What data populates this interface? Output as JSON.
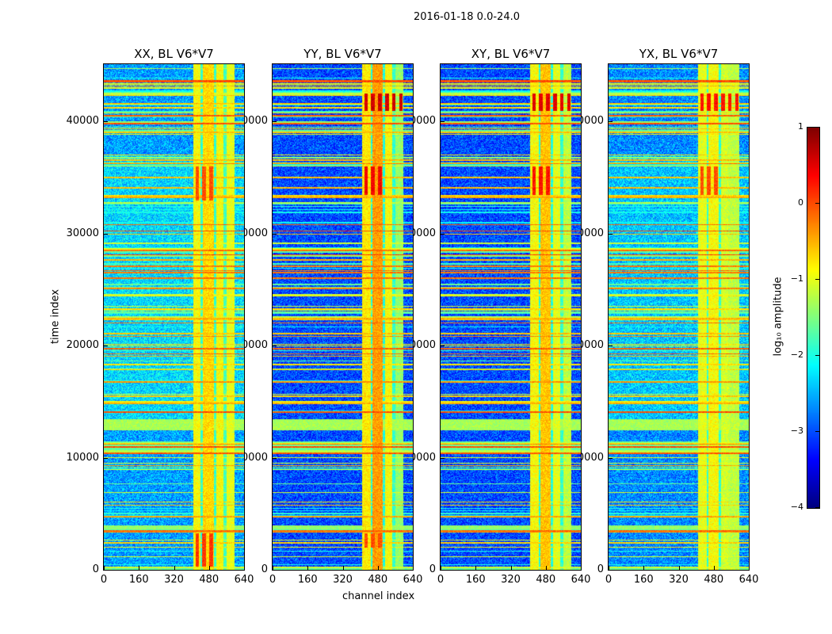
{
  "figure_title": "2016-01-18 0.0-24.0",
  "chart_data": {
    "type": "heatmap",
    "suptitle": "2016-01-18 0.0-24.0",
    "xlabel": "channel index",
    "ylabel": "time index",
    "xlim": [
      0,
      640
    ],
    "ylim": [
      0,
      45100
    ],
    "xticks": [
      "0",
      "160",
      "320",
      "480",
      "640"
    ],
    "yticks": [
      "0",
      "10000",
      "20000",
      "30000",
      "40000"
    ],
    "clim": [
      -4,
      1
    ],
    "colormap": "jet",
    "panels": [
      {
        "title": "XX, BL V6*V7",
        "background_level": -2.6,
        "channel_bands": [
          {
            "start": 405,
            "end": 440,
            "level": -0.9
          },
          {
            "start": 440,
            "end": 450,
            "level": -1.9
          },
          {
            "start": 450,
            "end": 500,
            "level": -0.7
          },
          {
            "start": 500,
            "end": 510,
            "level": -1.9
          },
          {
            "start": 510,
            "end": 545,
            "level": -0.9
          },
          {
            "start": 545,
            "end": 560,
            "level": -1.8
          },
          {
            "start": 560,
            "end": 595,
            "level": -1.0
          }
        ],
        "hot_patches": [
          {
            "c0": 405,
            "c1": 500,
            "t0": 300,
            "t1": 3300,
            "level": 0.1
          },
          {
            "c0": 405,
            "c1": 500,
            "t0": 33000,
            "t1": 36000,
            "level": 0.0
          }
        ]
      },
      {
        "title": "YY, BL V6*V7",
        "background_level": -3.0,
        "channel_bands": [
          {
            "start": 405,
            "end": 445,
            "level": -0.8
          },
          {
            "start": 445,
            "end": 455,
            "level": -2.0
          },
          {
            "start": 455,
            "end": 500,
            "level": -0.4
          },
          {
            "start": 500,
            "end": 510,
            "level": -2.0
          },
          {
            "start": 510,
            "end": 545,
            "level": -0.9
          },
          {
            "start": 545,
            "end": 560,
            "level": -1.9
          },
          {
            "start": 560,
            "end": 595,
            "level": -1.4
          }
        ],
        "hot_patches": [
          {
            "c0": 405,
            "c1": 600,
            "t0": 41000,
            "t1": 42500,
            "level": 0.6
          },
          {
            "c0": 405,
            "c1": 500,
            "t0": 33500,
            "t1": 36000,
            "level": 0.4
          },
          {
            "c0": 405,
            "c1": 500,
            "t0": 2000,
            "t1": 3300,
            "level": 0.0
          }
        ]
      },
      {
        "title": "XY, BL V6*V7",
        "background_level": -3.0,
        "channel_bands": [
          {
            "start": 405,
            "end": 445,
            "level": -0.9
          },
          {
            "start": 445,
            "end": 455,
            "level": -2.0
          },
          {
            "start": 455,
            "end": 500,
            "level": -0.6
          },
          {
            "start": 500,
            "end": 510,
            "level": -2.0
          },
          {
            "start": 510,
            "end": 545,
            "level": -1.0
          },
          {
            "start": 545,
            "end": 560,
            "level": -1.9
          },
          {
            "start": 560,
            "end": 595,
            "level": -1.2
          }
        ],
        "hot_patches": [
          {
            "c0": 405,
            "c1": 600,
            "t0": 41000,
            "t1": 42500,
            "level": 0.5
          },
          {
            "c0": 405,
            "c1": 500,
            "t0": 33500,
            "t1": 36000,
            "level": 0.3
          }
        ]
      },
      {
        "title": "YX, BL V6*V7",
        "background_level": -2.7,
        "channel_bands": [
          {
            "start": 405,
            "end": 445,
            "level": -1.0
          },
          {
            "start": 445,
            "end": 455,
            "level": -1.9
          },
          {
            "start": 455,
            "end": 500,
            "level": -0.9
          },
          {
            "start": 500,
            "end": 510,
            "level": -1.9
          },
          {
            "start": 510,
            "end": 545,
            "level": -1.1
          },
          {
            "start": 545,
            "end": 595,
            "level": -1.2
          }
        ],
        "hot_patches": [
          {
            "c0": 405,
            "c1": 600,
            "t0": 41000,
            "t1": 42500,
            "level": 0.3
          },
          {
            "c0": 405,
            "c1": 500,
            "t0": 33500,
            "t1": 36000,
            "level": 0.0
          }
        ]
      }
    ],
    "time_bands": [
      {
        "t0": 3500,
        "t1": 4000,
        "level": -1.4
      },
      {
        "t0": 10500,
        "t1": 11500,
        "level": -1.6
      },
      {
        "t0": 12500,
        "t1": 13500,
        "level": -1.3
      },
      {
        "t0": 4800,
        "t1": 4900,
        "level": -0.2
      },
      {
        "t0": 7000,
        "t1": 7150,
        "level": -3.6
      },
      {
        "t0": 20800,
        "t1": 20900,
        "level": -0.3
      },
      {
        "t0": 24400,
        "t1": 24500,
        "level": 0.1
      },
      {
        "t0": 28000,
        "t1": 28150,
        "level": 0.1
      },
      {
        "t0": 30200,
        "t1": 30300,
        "level": 0.0
      },
      {
        "t0": 42400,
        "t1": 42600,
        "level": -1.2
      },
      {
        "t0": 43500,
        "t1": 43700,
        "level": 0.0
      },
      {
        "t0": 100,
        "t1": 300,
        "level": -1.1
      }
    ],
    "colorbar": {
      "label": "log₁₀ amplitude",
      "ticks": [
        "1",
        "0",
        "−1",
        "−2",
        "−3",
        "−4"
      ]
    }
  }
}
